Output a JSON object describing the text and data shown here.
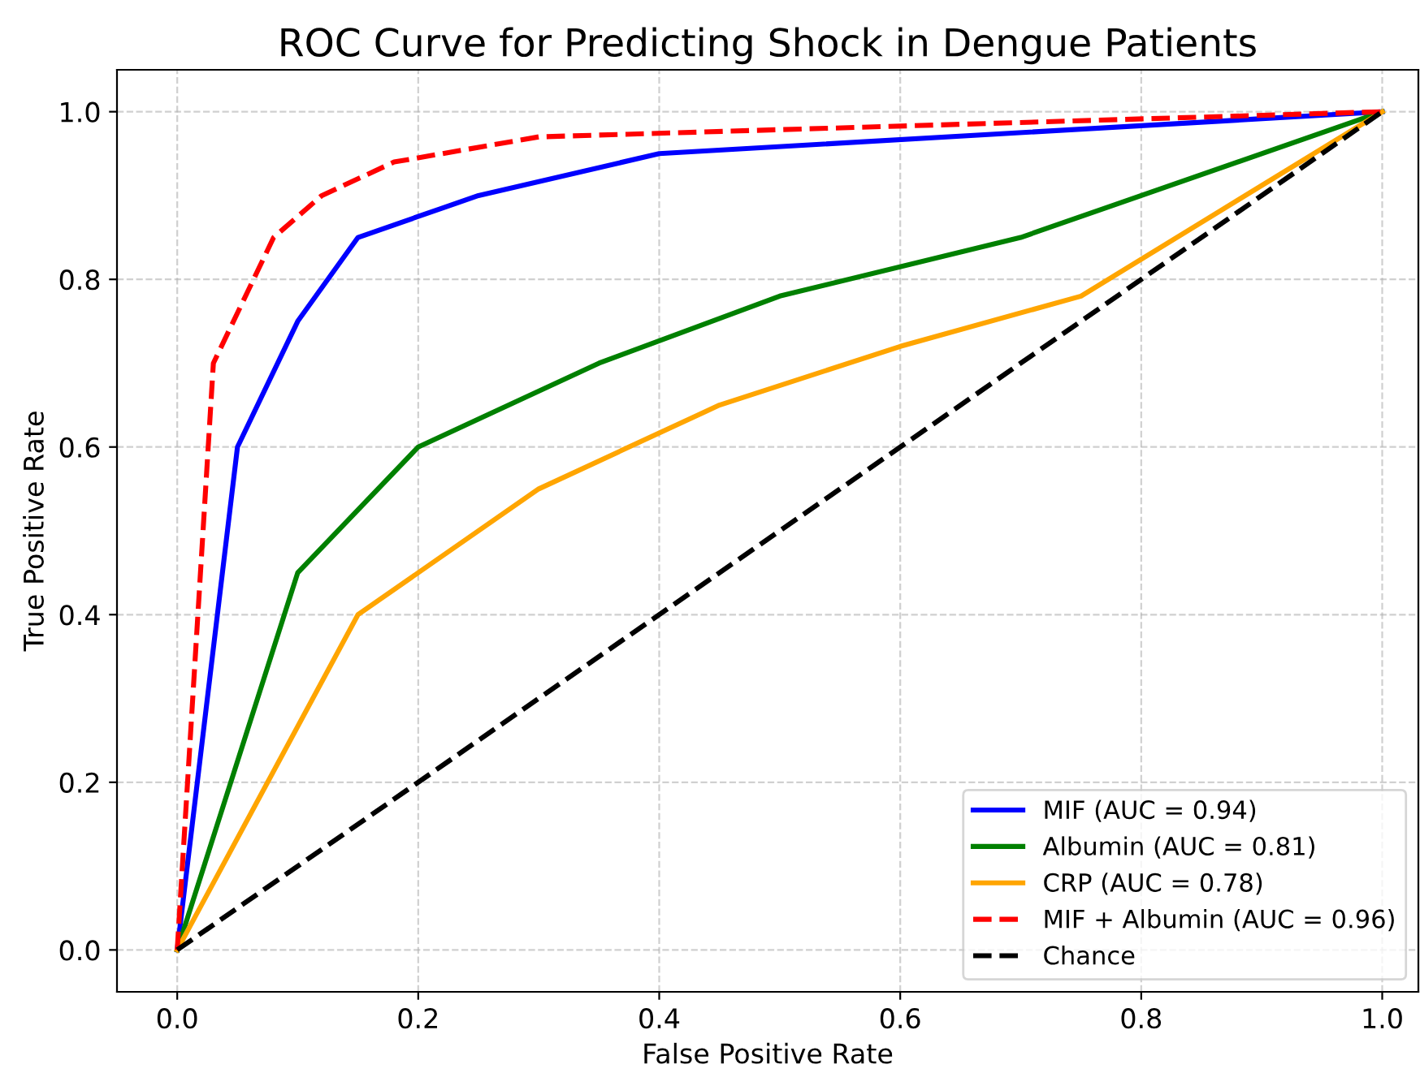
{
  "chart_data": {
    "type": "line",
    "title": "ROC Curve for Predicting Shock in Dengue Patients",
    "xlabel": "False Positive Rate",
    "ylabel": "True Positive Rate",
    "xlim": [
      -0.05,
      1.03
    ],
    "ylim": [
      -0.05,
      1.05
    ],
    "xticks": [
      {
        "value": 0,
        "label": "0.0"
      },
      0.2,
      0.4,
      0.6,
      0.8,
      {
        "value": 1,
        "label": "1.0"
      }
    ],
    "yticks": [
      {
        "value": 0,
        "label": "0.0"
      },
      0.2,
      0.4,
      0.6,
      0.8,
      {
        "value": 1,
        "label": "1.0"
      }
    ],
    "grid": true,
    "legend": "bottom right",
    "series": [
      {
        "name": "MIF (AUC = 0.94)",
        "color": "#0000ff",
        "line_style": "solid",
        "x": [
          0,
          0.05,
          0.1,
          0.15,
          0.25,
          0.4,
          1
        ],
        "values": [
          0,
          0.6,
          0.75,
          0.85,
          0.9,
          0.95,
          1
        ]
      },
      {
        "name": "Albumin (AUC = 0.81)",
        "color": "#008000",
        "line_style": "solid",
        "x": [
          0,
          0.1,
          0.2,
          0.35,
          0.5,
          0.7,
          1
        ],
        "values": [
          0,
          0.45,
          0.6,
          0.7,
          0.78,
          0.85,
          1
        ]
      },
      {
        "name": "CRP (AUC = 0.78)",
        "color": "#ffa500",
        "line_style": "solid",
        "x": [
          0,
          0.15,
          0.3,
          0.45,
          0.6,
          0.75,
          1
        ],
        "values": [
          0,
          0.4,
          0.55,
          0.65,
          0.72,
          0.78,
          1
        ]
      },
      {
        "name": "MIF + Albumin (AUC = 0.96)",
        "color": "#ff0000",
        "line_style": "dashed",
        "x": [
          0,
          0.03,
          0.08,
          0.12,
          0.18,
          0.3,
          1
        ],
        "values": [
          0,
          0.7,
          0.85,
          0.9,
          0.94,
          0.97,
          1
        ]
      },
      {
        "name": "Chance",
        "color": "#000000",
        "line_style": "dashed",
        "x": [
          0,
          1
        ],
        "values": [
          0,
          1
        ]
      }
    ]
  }
}
